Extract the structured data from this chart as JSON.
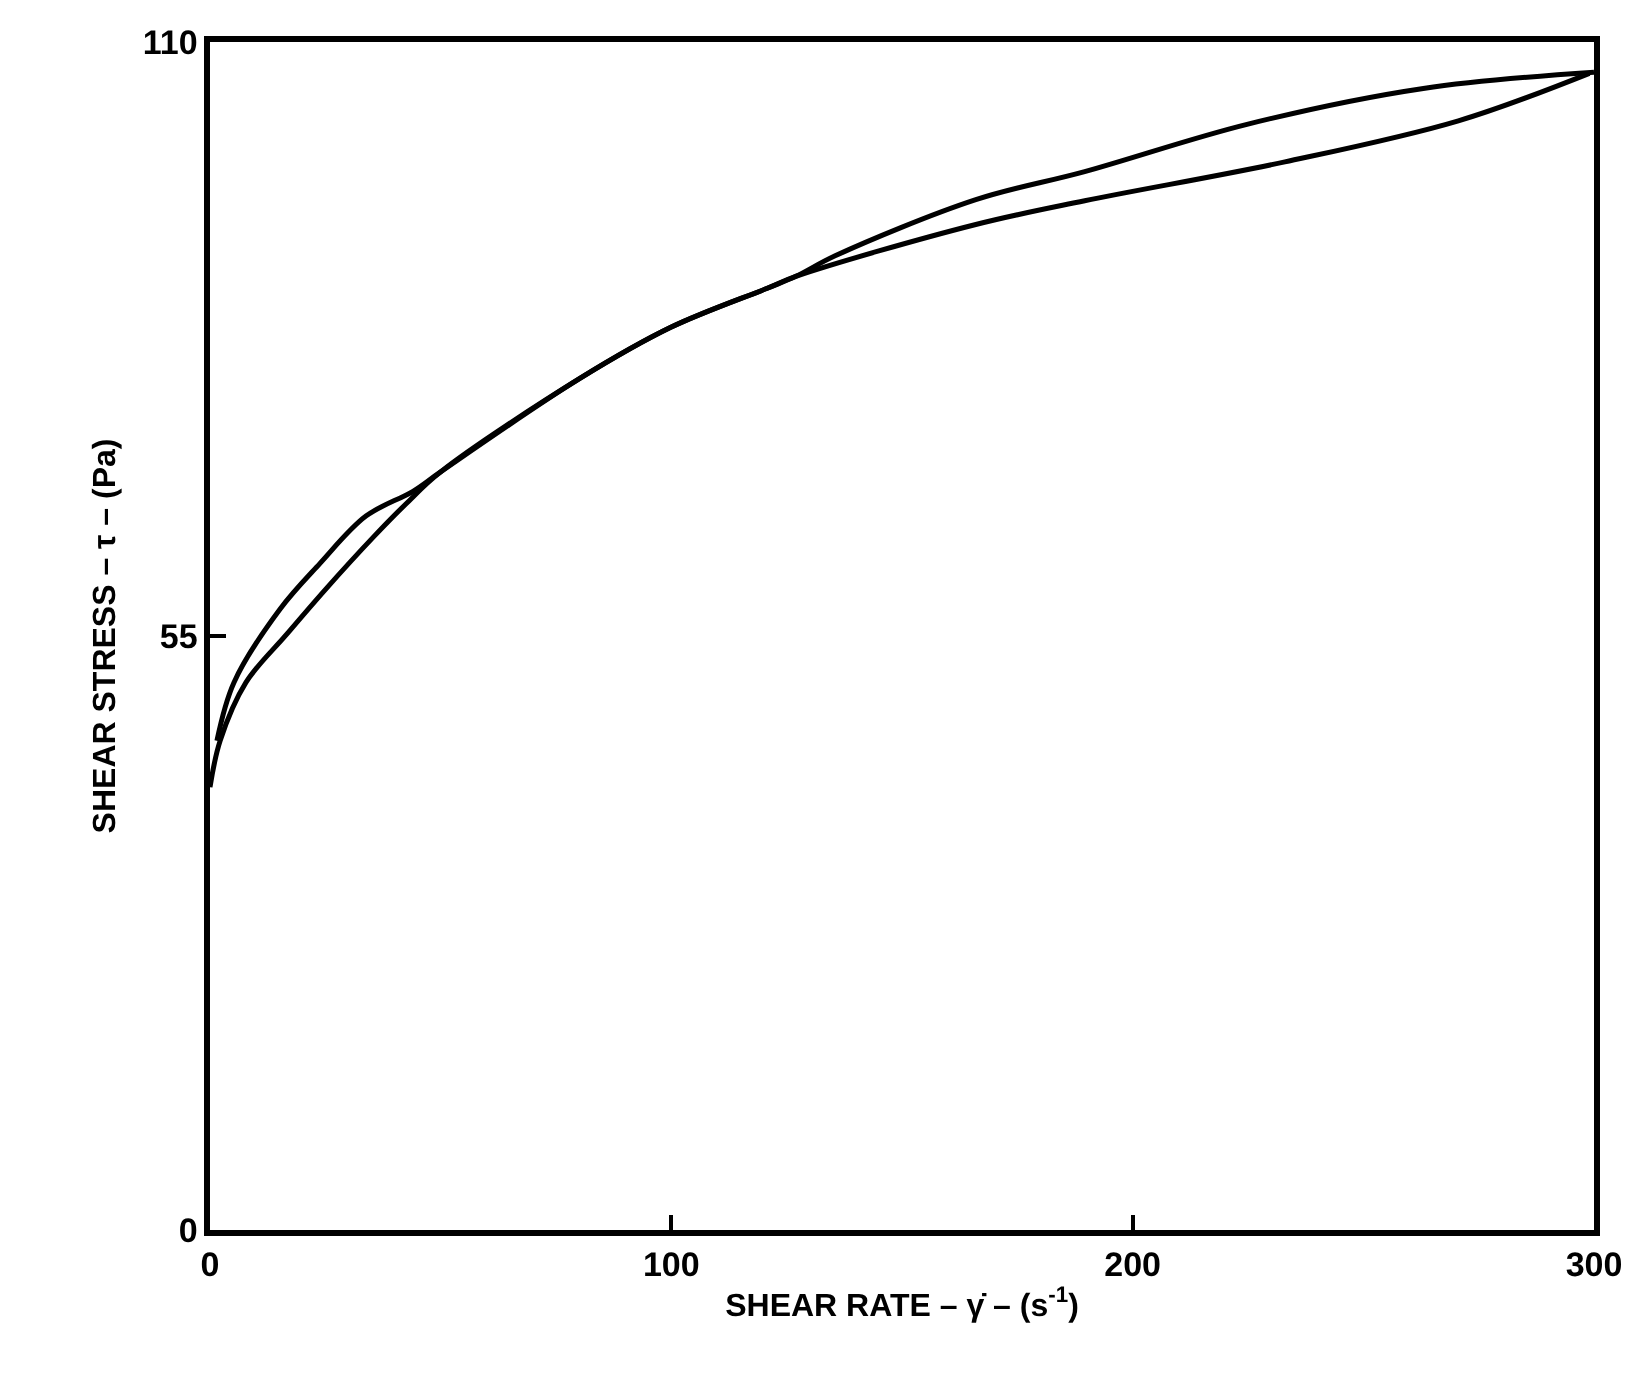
{
  "chart_data": {
    "type": "line",
    "xlabel": "SHEAR RATE – γ̇ – (s$^{-1}$)",
    "ylabel": "SHEAR STRESS – τ – (Pa)",
    "xlim": [
      0,
      300
    ],
    "ylim": [
      0,
      110
    ],
    "xticks": [
      0,
      100,
      200,
      300
    ],
    "yticks": [
      0,
      55,
      110
    ],
    "marker": "none",
    "line_style": "solid",
    "series": [
      {
        "color": "#000000",
        "x": [
          0,
          2.2,
          7.8,
          16.5,
          25,
          35.5,
          42.4,
          50,
          80,
          100,
          120.8,
          127,
          135.5,
          166,
          189.6,
          225,
          263,
          300
        ],
        "values": [
          41,
          45.3,
          50.7,
          55.1,
          59.3,
          64.2,
          67.2,
          70.2,
          78.8,
          83.6,
          87.2,
          88.3,
          90.2,
          95.4,
          98,
          102.4,
          105.7,
          107.2
        ]
      },
      {
        "color": "#000000",
        "x": [
          299,
          270.6,
          233,
          189.6,
          166,
          127,
          120.8,
          100,
          80,
          50,
          44,
          33.8,
          23.8,
          15.2,
          5.2,
          1.5
        ],
        "values": [
          107.1,
          102.7,
          98.9,
          95.3,
          93.1,
          88.3,
          87.2,
          83.6,
          78.8,
          70.2,
          68.4,
          66.1,
          61.7,
          57.5,
          50.7,
          45.3
        ]
      }
    ]
  }
}
